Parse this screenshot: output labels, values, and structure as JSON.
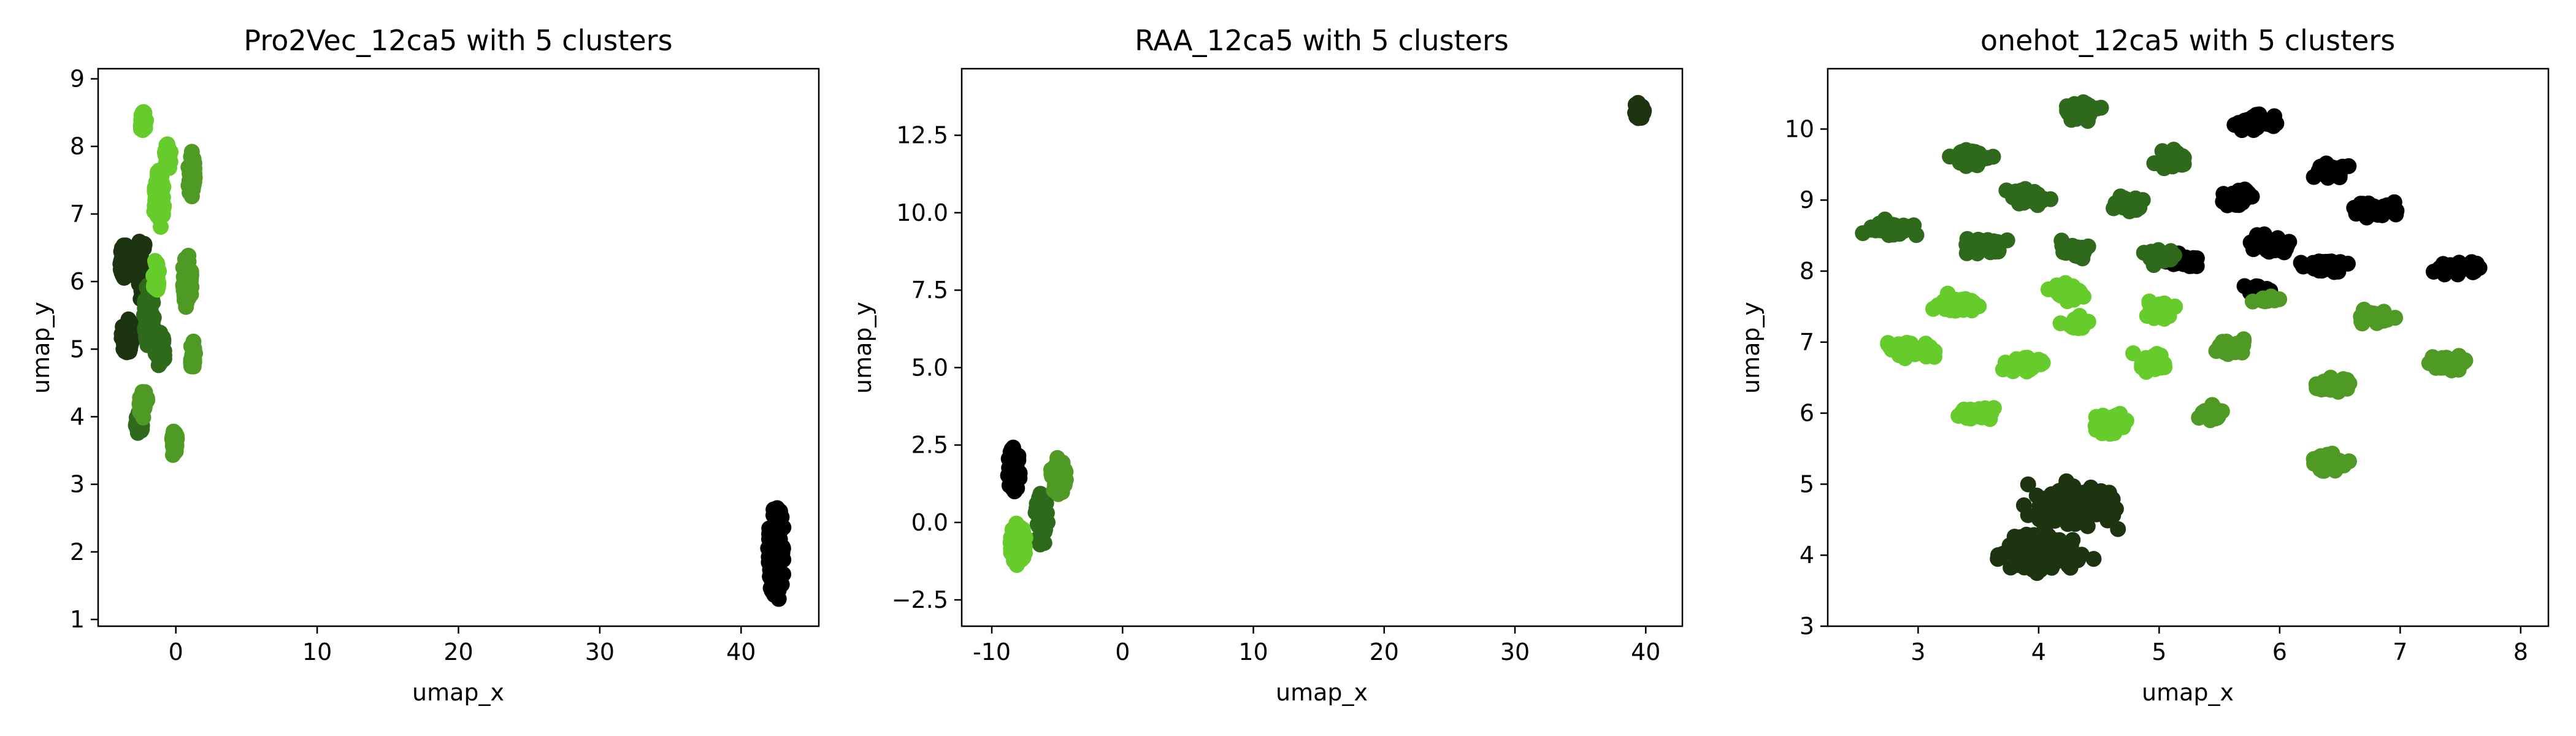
{
  "colors": {
    "cluster_0": "#000000",
    "cluster_1": "#1c3510",
    "cluster_2": "#2f6a1c",
    "cluster_3": "#4f9a25",
    "cluster_4": "#66cc2c"
  },
  "chart_data": [
    {
      "type": "scatter",
      "title": "Pro2Vec_12ca5 with 5 clusters",
      "xlabel": "umap_x",
      "ylabel": "umap_y",
      "xlim": [
        -5.5,
        45.5
      ],
      "ylim": [
        0.9,
        9.15
      ],
      "xticks": [
        0,
        10,
        20,
        30,
        40
      ],
      "yticks": [
        1,
        2,
        3,
        4,
        5,
        6,
        7,
        8,
        9
      ],
      "series": [
        {
          "cluster": 0,
          "clusters": [
            {
              "x": 42.5,
              "y": 2.0,
              "w": 1.2,
              "h": 1.45,
              "n": 80,
              "dist": "uniform"
            }
          ]
        },
        {
          "cluster": 1,
          "clusters": [
            {
              "x": -3.6,
              "y": 6.3,
              "w": 0.7,
              "h": 0.5,
              "n": 60,
              "dist": "uniform"
            },
            {
              "x": -3.4,
              "y": 5.2,
              "w": 0.9,
              "h": 0.55,
              "n": 60,
              "dist": "uniform"
            },
            {
              "x": -2.4,
              "y": 6.2,
              "w": 0.6,
              "h": 1.0,
              "n": 40,
              "dist": "uniform"
            }
          ]
        },
        {
          "cluster": 2,
          "clusters": [
            {
              "x": -1.9,
              "y": 5.5,
              "w": 0.7,
              "h": 0.95,
              "n": 70,
              "dist": "uniform"
            },
            {
              "x": -1.1,
              "y": 5.0,
              "w": 0.7,
              "h": 0.55,
              "n": 30,
              "dist": "uniform"
            },
            {
              "x": -2.6,
              "y": 3.9,
              "w": 0.5,
              "h": 0.35,
              "n": 25,
              "dist": "uniform"
            }
          ]
        },
        {
          "cluster": 3,
          "clusters": [
            {
              "x": -2.3,
              "y": 4.2,
              "w": 0.6,
              "h": 0.45,
              "n": 30,
              "dist": "uniform"
            },
            {
              "x": -0.1,
              "y": 3.6,
              "w": 0.45,
              "h": 0.4,
              "n": 25,
              "dist": "uniform"
            },
            {
              "x": 1.1,
              "y": 7.6,
              "w": 0.5,
              "h": 0.7,
              "n": 35,
              "dist": "uniform"
            },
            {
              "x": 0.8,
              "y": 6.0,
              "w": 0.7,
              "h": 0.8,
              "n": 40,
              "dist": "uniform"
            },
            {
              "x": 1.2,
              "y": 4.9,
              "w": 0.35,
              "h": 0.45,
              "n": 20,
              "dist": "uniform"
            }
          ]
        },
        {
          "cluster": 4,
          "clusters": [
            {
              "x": -2.3,
              "y": 8.35,
              "w": 0.4,
              "h": 0.35,
              "n": 20,
              "dist": "uniform"
            },
            {
              "x": -1.2,
              "y": 7.2,
              "w": 0.75,
              "h": 0.9,
              "n": 60,
              "dist": "uniform"
            },
            {
              "x": -1.4,
              "y": 6.1,
              "w": 0.45,
              "h": 0.5,
              "n": 30,
              "dist": "uniform"
            },
            {
              "x": -0.6,
              "y": 7.85,
              "w": 0.5,
              "h": 0.4,
              "n": 20,
              "dist": "uniform"
            }
          ]
        }
      ]
    },
    {
      "type": "scatter",
      "title": "RAA_12ca5 with 5 clusters",
      "xlabel": "umap_x",
      "ylabel": "umap_y",
      "xlim": [
        -12.3,
        42.8
      ],
      "ylim": [
        -3.35,
        14.65
      ],
      "xticks": [
        -10,
        0,
        10,
        20,
        30,
        40
      ],
      "yticks": [
        -2.5,
        0.0,
        2.5,
        5.0,
        7.5,
        10.0,
        12.5
      ],
      "ytick_labels": [
        "−2.5",
        "0.0",
        "2.5",
        "5.0",
        "7.5",
        "10.0",
        "12.5"
      ],
      "series": [
        {
          "cluster": 0,
          "clusters": [
            {
              "x": -8.3,
              "y": 1.7,
              "w": 1.0,
              "h": 1.45,
              "n": 60,
              "dist": "uniform"
            }
          ]
        },
        {
          "cluster": 1,
          "clusters": [
            {
              "x": 39.5,
              "y": 13.3,
              "w": 0.8,
              "h": 0.55,
              "n": 45,
              "dist": "uniform"
            }
          ]
        },
        {
          "cluster": 2,
          "clusters": [
            {
              "x": -6.2,
              "y": 0.1,
              "w": 1.0,
              "h": 1.7,
              "n": 50,
              "dist": "uniform"
            }
          ]
        },
        {
          "cluster": 3,
          "clusters": [
            {
              "x": -4.9,
              "y": 1.5,
              "w": 1.2,
              "h": 1.2,
              "n": 55,
              "dist": "uniform"
            }
          ]
        },
        {
          "cluster": 4,
          "clusters": [
            {
              "x": -8.0,
              "y": -0.7,
              "w": 1.2,
              "h": 1.4,
              "n": 65,
              "dist": "uniform"
            }
          ]
        }
      ]
    },
    {
      "type": "scatter",
      "title": "onehot_12ca5 with 5 clusters",
      "xlabel": "umap_x",
      "ylabel": "umap_y",
      "xlim": [
        2.25,
        8.23
      ],
      "ylim": [
        3.0,
        10.85
      ],
      "xticks": [
        3,
        4,
        5,
        6,
        7,
        8
      ],
      "yticks": [
        3,
        4,
        5,
        6,
        7,
        8,
        9,
        10
      ],
      "series": [
        {
          "cluster": 0,
          "clusters": [
            {
              "x": 5.8,
              "y": 10.1,
              "w": 0.3,
              "h": 0.26,
              "n": 40,
              "dist": "gauss"
            },
            {
              "x": 6.4,
              "y": 9.4,
              "w": 0.28,
              "h": 0.24,
              "n": 40,
              "dist": "gauss"
            },
            {
              "x": 5.65,
              "y": 9.05,
              "w": 0.3,
              "h": 0.24,
              "n": 40,
              "dist": "gauss"
            },
            {
              "x": 6.8,
              "y": 8.85,
              "w": 0.35,
              "h": 0.22,
              "n": 40,
              "dist": "gauss"
            },
            {
              "x": 5.9,
              "y": 8.4,
              "w": 0.32,
              "h": 0.24,
              "n": 40,
              "dist": "gauss"
            },
            {
              "x": 5.2,
              "y": 8.15,
              "w": 0.28,
              "h": 0.2,
              "n": 35,
              "dist": "gauss"
            },
            {
              "x": 6.35,
              "y": 8.1,
              "w": 0.35,
              "h": 0.22,
              "n": 40,
              "dist": "gauss"
            },
            {
              "x": 7.5,
              "y": 8.05,
              "w": 0.35,
              "h": 0.22,
              "n": 40,
              "dist": "gauss"
            },
            {
              "x": 5.8,
              "y": 7.75,
              "w": 0.25,
              "h": 0.1,
              "n": 15,
              "dist": "gauss"
            }
          ]
        },
        {
          "cluster": 1,
          "clusters": [
            {
              "x": 4.0,
              "y": 4.05,
              "w": 0.55,
              "h": 0.45,
              "n": 240,
              "dist": "gauss"
            },
            {
              "x": 4.3,
              "y": 4.7,
              "w": 0.75,
              "h": 0.65,
              "n": 110,
              "dist": "gauss"
            }
          ]
        },
        {
          "cluster": 2,
          "clusters": [
            {
              "x": 4.35,
              "y": 10.25,
              "w": 0.3,
              "h": 0.25,
              "n": 40,
              "dist": "gauss"
            },
            {
              "x": 3.45,
              "y": 9.6,
              "w": 0.35,
              "h": 0.22,
              "n": 40,
              "dist": "gauss"
            },
            {
              "x": 5.1,
              "y": 9.6,
              "w": 0.28,
              "h": 0.25,
              "n": 40,
              "dist": "gauss"
            },
            {
              "x": 3.9,
              "y": 9.05,
              "w": 0.35,
              "h": 0.2,
              "n": 40,
              "dist": "gauss"
            },
            {
              "x": 4.75,
              "y": 8.95,
              "w": 0.25,
              "h": 0.22,
              "n": 35,
              "dist": "gauss"
            },
            {
              "x": 2.75,
              "y": 8.6,
              "w": 0.4,
              "h": 0.2,
              "n": 45,
              "dist": "gauss"
            },
            {
              "x": 3.55,
              "y": 8.35,
              "w": 0.3,
              "h": 0.24,
              "n": 40,
              "dist": "gauss"
            },
            {
              "x": 4.3,
              "y": 8.3,
              "w": 0.28,
              "h": 0.22,
              "n": 35,
              "dist": "gauss"
            },
            {
              "x": 5.0,
              "y": 8.2,
              "w": 0.22,
              "h": 0.18,
              "n": 20,
              "dist": "gauss"
            }
          ]
        },
        {
          "cluster": 3,
          "clusters": [
            {
              "x": 5.6,
              "y": 6.95,
              "w": 0.28,
              "h": 0.22,
              "n": 35,
              "dist": "gauss"
            },
            {
              "x": 6.8,
              "y": 7.35,
              "w": 0.33,
              "h": 0.22,
              "n": 35,
              "dist": "gauss"
            },
            {
              "x": 7.4,
              "y": 6.7,
              "w": 0.35,
              "h": 0.22,
              "n": 40,
              "dist": "gauss"
            },
            {
              "x": 6.45,
              "y": 6.4,
              "w": 0.3,
              "h": 0.23,
              "n": 35,
              "dist": "gauss"
            },
            {
              "x": 5.45,
              "y": 6.0,
              "w": 0.25,
              "h": 0.25,
              "n": 35,
              "dist": "gauss"
            },
            {
              "x": 6.4,
              "y": 5.3,
              "w": 0.35,
              "h": 0.25,
              "n": 40,
              "dist": "gauss"
            },
            {
              "x": 5.9,
              "y": 7.6,
              "w": 0.28,
              "h": 0.1,
              "n": 15,
              "dist": "gauss"
            }
          ]
        },
        {
          "cluster": 4,
          "clusters": [
            {
              "x": 3.35,
              "y": 7.55,
              "w": 0.35,
              "h": 0.22,
              "n": 40,
              "dist": "gauss"
            },
            {
              "x": 4.25,
              "y": 7.7,
              "w": 0.3,
              "h": 0.22,
              "n": 35,
              "dist": "gauss"
            },
            {
              "x": 4.3,
              "y": 7.25,
              "w": 0.28,
              "h": 0.2,
              "n": 30,
              "dist": "gauss"
            },
            {
              "x": 5.0,
              "y": 7.45,
              "w": 0.3,
              "h": 0.25,
              "n": 40,
              "dist": "gauss"
            },
            {
              "x": 2.95,
              "y": 6.9,
              "w": 0.38,
              "h": 0.24,
              "n": 45,
              "dist": "gauss"
            },
            {
              "x": 3.9,
              "y": 6.7,
              "w": 0.35,
              "h": 0.25,
              "n": 45,
              "dist": "gauss"
            },
            {
              "x": 4.95,
              "y": 6.7,
              "w": 0.28,
              "h": 0.24,
              "n": 35,
              "dist": "gauss"
            },
            {
              "x": 3.5,
              "y": 6.0,
              "w": 0.35,
              "h": 0.24,
              "n": 40,
              "dist": "gauss"
            },
            {
              "x": 4.6,
              "y": 5.85,
              "w": 0.32,
              "h": 0.25,
              "n": 40,
              "dist": "gauss"
            }
          ]
        }
      ]
    }
  ]
}
